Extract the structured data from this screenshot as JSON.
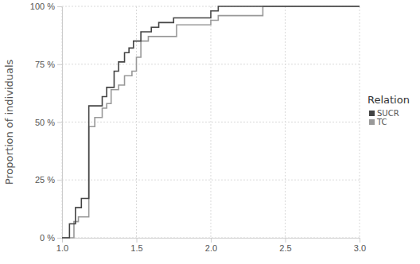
{
  "chart_data": {
    "type": "line",
    "line_style": "step",
    "grid": true,
    "legend": "right",
    "y_label": "Proportion of individuals",
    "legend_title": "Relation",
    "xlim": [
      1.0,
      3.0
    ],
    "xticks": [
      {
        "value": 1.0,
        "label": "1.0"
      },
      {
        "value": 1.5,
        "label": "1.5"
      },
      {
        "value": 2.0,
        "label": "2.0"
      },
      {
        "value": 2.5,
        "label": "2.5"
      },
      {
        "value": 3.0,
        "label": "3.0"
      }
    ],
    "ylim": [
      0,
      100
    ],
    "yticks": [
      {
        "value": 0,
        "label": "0 %"
      },
      {
        "value": 25,
        "label": "25 %"
      },
      {
        "value": 50,
        "label": "50 %"
      },
      {
        "value": 75,
        "label": "75 %"
      },
      {
        "value": 100,
        "label": "100 %"
      }
    ],
    "series": [
      {
        "name": "SUCR",
        "color": "#444444",
        "x": [
          1.0,
          1.05,
          1.09,
          1.13,
          1.18,
          1.27,
          1.3,
          1.35,
          1.38,
          1.42,
          1.45,
          1.48,
          1.53,
          1.6,
          1.65,
          1.75,
          2.0,
          2.05,
          3.0
        ],
        "values": [
          0,
          6,
          13,
          17,
          57,
          61,
          65,
          72,
          76,
          80,
          82,
          85,
          89,
          91,
          93,
          95,
          98,
          100,
          100
        ]
      },
      {
        "name": "TC",
        "color": "#999999",
        "x": [
          1.0,
          1.08,
          1.11,
          1.18,
          1.22,
          1.27,
          1.3,
          1.33,
          1.38,
          1.42,
          1.47,
          1.5,
          1.53,
          1.58,
          1.77,
          2.0,
          2.05,
          2.35,
          3.0
        ],
        "values": [
          0,
          7,
          9,
          48,
          52,
          56,
          58,
          64,
          66,
          70,
          72,
          78,
          85,
          87,
          92,
          94,
          96,
          100,
          100
        ]
      }
    ]
  }
}
